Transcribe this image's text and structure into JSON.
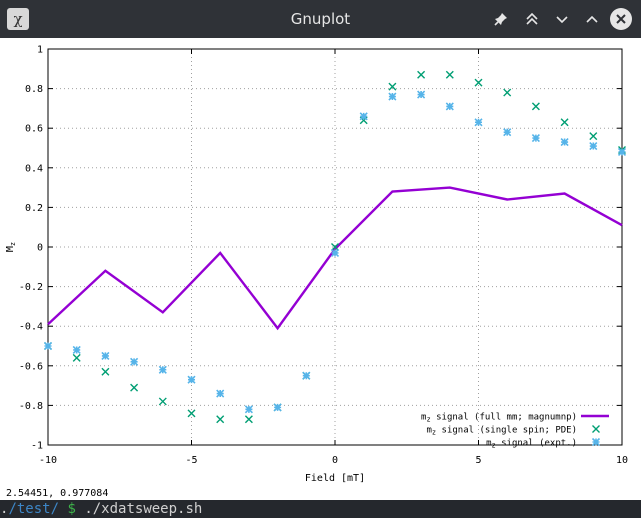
{
  "window": {
    "title": "Gnuplot",
    "app_icon": "gnuplot-app-icon",
    "controls": [
      "pin-icon",
      "keep-above-icon",
      "minimize-icon",
      "maximize-icon",
      "close-icon"
    ]
  },
  "statusbar": {
    "coordinates": "2.54451,  0.977084"
  },
  "terminal": {
    "dot": ".",
    "path": "/test/",
    "prompt": " $ ",
    "command": "./xdatsweep.sh"
  },
  "colors": {
    "line": "#9400d3",
    "pde": "#009e73",
    "expt": "#56b4e9",
    "axis": "#000000",
    "grid": "#a0a0a0"
  },
  "chart_data": {
    "type": "scatter",
    "title": "",
    "xlabel": "Field [mT]",
    "ylabel": "M_z",
    "xlim": [
      -10,
      10
    ],
    "ylim": [
      -1,
      1
    ],
    "xticks": [
      -10,
      -5,
      0,
      5,
      10
    ],
    "yticks": [
      -1,
      -0.8,
      -0.6,
      -0.4,
      -0.2,
      0,
      0.2,
      0.4,
      0.6,
      0.8,
      1
    ],
    "xtick_labels": [
      "-10",
      "-5",
      "0",
      "5",
      "10"
    ],
    "ytick_labels": [
      "-1",
      "-0.8",
      "-0.6",
      "-0.4",
      "-0.2",
      "0",
      "0.2",
      "0.4",
      "0.6",
      "0.8",
      "1"
    ],
    "grid": true,
    "legend_position": "bottom-right",
    "series": [
      {
        "name": "m_z signal (full mm; magnumnp)",
        "style": "line",
        "color": "#9400d3",
        "x": [
          -10,
          -8,
          -6,
          -4,
          -2,
          0,
          2,
          4,
          6,
          8,
          10
        ],
        "y": [
          -0.39,
          -0.12,
          -0.33,
          -0.03,
          -0.41,
          -0.01,
          0.28,
          0.3,
          0.24,
          0.27,
          0.11
        ]
      },
      {
        "name": "m_z signal (single spin; PDE)",
        "style": "cross",
        "color": "#009e73",
        "x": [
          -10,
          -9,
          -8,
          -7,
          -6,
          -5,
          -4,
          -3,
          -2,
          -1,
          0,
          1,
          2,
          3,
          4,
          5,
          6,
          7,
          8,
          9,
          10
        ],
        "y": [
          -0.5,
          -0.56,
          -0.63,
          -0.71,
          -0.78,
          -0.84,
          -0.87,
          -0.87,
          -0.81,
          -0.65,
          0.0,
          0.64,
          0.81,
          0.87,
          0.87,
          0.83,
          0.78,
          0.71,
          0.63,
          0.56,
          0.49
        ]
      },
      {
        "name": "m_z signal (expt.)",
        "style": "star",
        "color": "#56b4e9",
        "x": [
          -10,
          -9,
          -8,
          -7,
          -6,
          -5,
          -4,
          -3,
          -2,
          -1,
          0,
          1,
          2,
          3,
          4,
          5,
          6,
          7,
          8,
          9,
          10
        ],
        "y": [
          -0.5,
          -0.52,
          -0.55,
          -0.58,
          -0.62,
          -0.67,
          -0.74,
          -0.82,
          -0.81,
          -0.65,
          -0.03,
          0.66,
          0.76,
          0.77,
          0.71,
          0.63,
          0.58,
          0.55,
          0.53,
          0.51,
          0.48
        ]
      }
    ]
  }
}
